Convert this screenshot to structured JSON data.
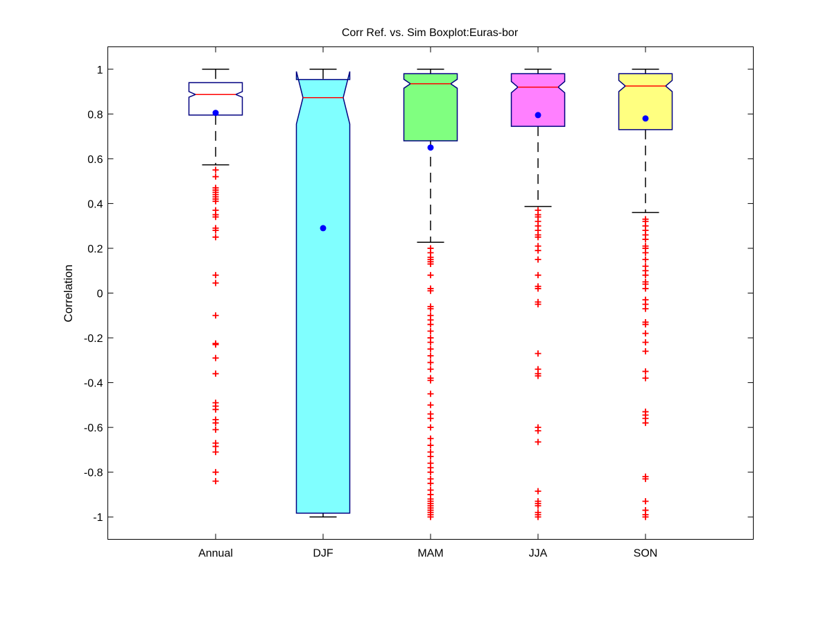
{
  "chart_data": {
    "type": "boxplot",
    "title": "Corr Ref. vs. Sim Boxplot:Euras-bor",
    "xlabel": "",
    "ylabel": "Correlation",
    "ylim": [
      -1.1,
      1.1
    ],
    "yticks": [
      -1,
      -0.8,
      -0.6,
      -0.4,
      -0.2,
      0,
      0.2,
      0.4,
      0.6,
      0.8,
      1
    ],
    "ytick_labels": [
      "-1",
      "-0.8",
      "-0.6",
      "-0.4",
      "-0.2",
      "0",
      "0.2",
      "0.4",
      "0.6",
      "0.8",
      "1"
    ],
    "grid": false,
    "notched": true,
    "colors": {
      "box_edge": "#000080",
      "median": "#ff0000",
      "whisker": "#000000",
      "outlier": "#ff0000",
      "mean": "#0000ff"
    },
    "categories": [
      "Annual",
      "DJF",
      "MAM",
      "JJA",
      "SON"
    ],
    "boxes": [
      {
        "label": "Annual",
        "fill": "#ffffff",
        "q1": 0.795,
        "median": 0.887,
        "q3": 0.94,
        "notch_low": 0.875,
        "notch_high": 0.9,
        "whisker_low": 0.573,
        "whisker_high": 1.0,
        "mean": 0.805,
        "outliers": [
          0.55,
          0.52,
          0.47,
          0.46,
          0.45,
          0.44,
          0.43,
          0.42,
          0.41,
          0.37,
          0.35,
          0.34,
          0.29,
          0.28,
          0.25,
          0.08,
          0.045,
          -0.1,
          -0.225,
          -0.23,
          -0.29,
          -0.36,
          -0.49,
          -0.505,
          -0.52,
          -0.565,
          -0.58,
          -0.61,
          -0.67,
          -0.685,
          -0.71,
          -0.8,
          -0.84
        ]
      },
      {
        "label": "DJF",
        "fill": "#80ffff",
        "q1": -0.983,
        "median": 0.873,
        "q3": 0.954,
        "notch_low": 0.755,
        "notch_high": 0.99,
        "whisker_low": -1.0,
        "whisker_high": 1.0,
        "mean": 0.29,
        "outliers": []
      },
      {
        "label": "MAM",
        "fill": "#80ff80",
        "q1": 0.68,
        "median": 0.935,
        "q3": 0.98,
        "notch_low": 0.915,
        "notch_high": 0.955,
        "whisker_low": 0.227,
        "whisker_high": 1.0,
        "mean": 0.65,
        "outliers": [
          0.2,
          0.18,
          0.16,
          0.15,
          0.14,
          0.13,
          0.08,
          0.02,
          0.01,
          -0.06,
          -0.07,
          -0.1,
          -0.12,
          -0.14,
          -0.17,
          -0.2,
          -0.22,
          -0.25,
          -0.28,
          -0.31,
          -0.34,
          -0.38,
          -0.39,
          -0.45,
          -0.5,
          -0.54,
          -0.56,
          -0.6,
          -0.65,
          -0.68,
          -0.71,
          -0.73,
          -0.76,
          -0.78,
          -0.8,
          -0.83,
          -0.85,
          -0.88,
          -0.9,
          -0.92,
          -0.93,
          -0.94,
          -0.95,
          -0.96,
          -0.97,
          -0.98,
          -0.99,
          -1.0
        ]
      },
      {
        "label": "JJA",
        "fill": "#ff80ff",
        "q1": 0.745,
        "median": 0.92,
        "q3": 0.98,
        "notch_low": 0.895,
        "notch_high": 0.945,
        "whisker_low": 0.387,
        "whisker_high": 1.0,
        "mean": 0.795,
        "outliers": [
          0.37,
          0.35,
          0.34,
          0.32,
          0.3,
          0.28,
          0.26,
          0.25,
          0.21,
          0.19,
          0.15,
          0.08,
          0.03,
          0.02,
          -0.04,
          -0.05,
          -0.27,
          -0.34,
          -0.36,
          -0.37,
          -0.6,
          -0.615,
          -0.665,
          -0.885,
          -0.93,
          -0.94,
          -0.95,
          -0.98,
          -0.99,
          -1.0
        ]
      },
      {
        "label": "SON",
        "fill": "#ffff80",
        "q1": 0.73,
        "median": 0.925,
        "q3": 0.98,
        "notch_low": 0.9,
        "notch_high": 0.95,
        "whisker_low": 0.36,
        "whisker_high": 1.0,
        "mean": 0.78,
        "outliers": [
          0.33,
          0.32,
          0.3,
          0.28,
          0.26,
          0.24,
          0.21,
          0.2,
          0.18,
          0.15,
          0.12,
          0.1,
          0.08,
          0.05,
          0.04,
          0.02,
          -0.03,
          -0.05,
          -0.07,
          -0.13,
          -0.14,
          -0.18,
          -0.22,
          -0.26,
          -0.35,
          -0.38,
          -0.53,
          -0.545,
          -0.56,
          -0.58,
          -0.82,
          -0.83,
          -0.93,
          -0.97,
          -0.99,
          -1.0
        ]
      }
    ]
  }
}
